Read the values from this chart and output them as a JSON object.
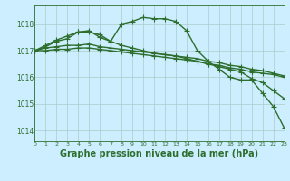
{
  "background_color": "#cceeff",
  "grid_color": "#aacccc",
  "line_color": "#2d6e2d",
  "marker": "+",
  "marker_size": 4,
  "line_width": 1.0,
  "ylabel_ticks": [
    1014,
    1015,
    1016,
    1017,
    1018
  ],
  "xlim": [
    0,
    23
  ],
  "ylim": [
    1013.6,
    1018.7
  ],
  "xlabel": "Graphe pression niveau de la mer (hPa)",
  "xlabel_fontsize": 7,
  "xtick_labels": [
    "0",
    "1",
    "2",
    "3",
    "4",
    "5",
    "6",
    "7",
    "8",
    "9",
    "10",
    "11",
    "12",
    "13",
    "14",
    "15",
    "16",
    "17",
    "18",
    "19",
    "20",
    "21",
    "22",
    "23"
  ],
  "series": [
    [
      1017.0,
      1017.2,
      1017.4,
      1017.55,
      1017.7,
      1017.75,
      1017.5,
      1017.35,
      1018.0,
      1018.1,
      1018.25,
      1018.2,
      1018.2,
      1018.1,
      1017.75,
      1017.0,
      1016.6,
      1016.3,
      1016.0,
      1015.9,
      1015.9,
      1015.4,
      1014.9,
      1014.1
    ],
    [
      1017.0,
      1017.15,
      1017.35,
      1017.45,
      1017.7,
      1017.7,
      1017.6,
      1017.35,
      1017.2,
      1017.1,
      1017.0,
      1016.9,
      1016.85,
      1016.8,
      1016.7,
      1016.6,
      1016.5,
      1016.45,
      1016.35,
      1016.3,
      1016.2,
      1016.15,
      1016.1,
      1016.0
    ],
    [
      1017.0,
      1017.1,
      1017.15,
      1017.2,
      1017.2,
      1017.25,
      1017.15,
      1017.1,
      1017.05,
      1017.0,
      1016.95,
      1016.9,
      1016.85,
      1016.8,
      1016.75,
      1016.7,
      1016.6,
      1016.55,
      1016.45,
      1016.4,
      1016.3,
      1016.25,
      1016.15,
      1016.05
    ],
    [
      1017.0,
      1017.0,
      1017.05,
      1017.05,
      1017.1,
      1017.1,
      1017.05,
      1017.0,
      1016.95,
      1016.9,
      1016.85,
      1016.8,
      1016.75,
      1016.7,
      1016.65,
      1016.6,
      1016.5,
      1016.4,
      1016.3,
      1016.2,
      1015.95,
      1015.8,
      1015.5,
      1015.2
    ]
  ]
}
